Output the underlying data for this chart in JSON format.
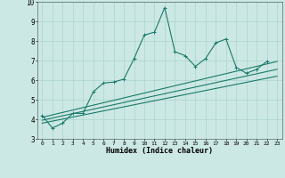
{
  "xlabel": "Humidex (Indice chaleur)",
  "xlim": [
    -0.5,
    23.5
  ],
  "ylim": [
    3,
    10
  ],
  "xticks": [
    0,
    1,
    2,
    3,
    4,
    5,
    6,
    7,
    8,
    9,
    10,
    11,
    12,
    13,
    14,
    15,
    16,
    17,
    18,
    19,
    20,
    21,
    22,
    23
  ],
  "yticks": [
    3,
    4,
    5,
    6,
    7,
    8,
    9,
    10
  ],
  "background_color": "#cce8e4",
  "grid_color": "#aad4cc",
  "line_color": "#1a7a6a",
  "series_main": [
    4.2,
    3.55,
    3.8,
    4.3,
    4.3,
    5.4,
    5.85,
    5.9,
    6.05,
    7.1,
    8.3,
    8.45,
    9.7,
    7.45,
    7.25,
    6.7,
    7.1,
    7.9,
    8.1,
    6.65,
    6.35,
    6.55,
    6.95
  ],
  "series_main_x": [
    0,
    1,
    2,
    3,
    4,
    5,
    6,
    7,
    8,
    9,
    10,
    11,
    12,
    13,
    14,
    15,
    16,
    17,
    18,
    19,
    20,
    21,
    22
  ],
  "trend1_x": [
    0,
    23
  ],
  "trend1_y": [
    4.1,
    6.95
  ],
  "trend2_x": [
    0,
    23
  ],
  "trend2_y": [
    3.95,
    6.55
  ],
  "trend3_x": [
    0,
    23
  ],
  "trend3_y": [
    3.8,
    6.2
  ]
}
